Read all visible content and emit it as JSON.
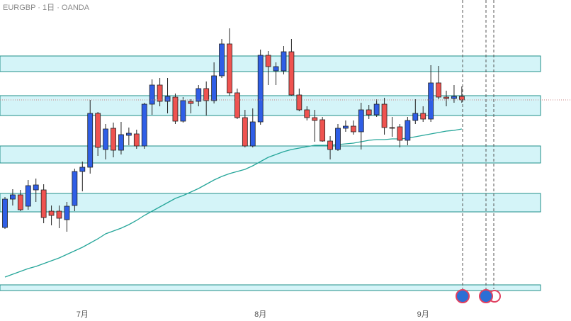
{
  "chart_data": {
    "type": "candlestick",
    "title": "EURGBP · 1日 · OANDA",
    "categories": [
      null,
      null,
      null,
      null,
      null,
      null,
      null,
      null,
      null,
      null,
      "7月",
      null,
      null,
      null,
      null,
      null,
      null,
      null,
      null,
      null,
      null,
      null,
      null,
      null,
      null,
      null,
      null,
      null,
      null,
      null,
      null,
      null,
      null,
      "8月",
      null,
      null,
      null,
      null,
      null,
      null,
      null,
      null,
      null,
      null,
      null,
      null,
      null,
      null,
      null,
      null,
      null,
      null,
      null,
      null,
      "9月",
      null,
      null,
      null,
      null,
      null
    ],
    "open": [
      109,
      149,
      155,
      139,
      162,
      162,
      132,
      132,
      120,
      140,
      188,
      194,
      270,
      219,
      249,
      218,
      239,
      241,
      224,
      283,
      310,
      287,
      293,
      259,
      287,
      287,
      305,
      288,
      323,
      368,
      299,
      264,
      224,
      258,
      352,
      330,
      330,
      357,
      296,
      275,
      264,
      261,
      231,
      219,
      249,
      252,
      244,
      275,
      268,
      283,
      250,
      251,
      232,
      260,
      270,
      262,
      313,
      293,
      291,
      294
    ],
    "high": [
      152,
      163,
      162,
      176,
      178,
      170,
      140,
      140,
      145,
      192,
      202,
      289,
      272,
      255,
      257,
      258,
      250,
      247,
      285,
      318,
      320,
      320,
      298,
      293,
      290,
      310,
      315,
      342,
      375,
      390,
      305,
      275,
      277,
      360,
      358,
      342,
      365,
      375,
      305,
      280,
      275,
      265,
      238,
      255,
      260,
      260,
      285,
      282,
      290,
      292,
      265,
      255,
      265,
      290,
      280,
      338,
      337,
      302,
      310,
      308
    ],
    "low": [
      107,
      140,
      132,
      134,
      145,
      115,
      112,
      108,
      103,
      132,
      160,
      185,
      210,
      205,
      208,
      212,
      225,
      220,
      220,
      268,
      280,
      270,
      255,
      257,
      270,
      280,
      267,
      284,
      320,
      295,
      262,
      222,
      222,
      254,
      310,
      310,
      325,
      295,
      273,
      260,
      230,
      230,
      205,
      217,
      244,
      240,
      219,
      262,
      265,
      240,
      237,
      222,
      225,
      255,
      258,
      258,
      290,
      280,
      285,
      285
    ],
    "close": [
      149,
      155,
      134,
      168,
      169,
      123,
      126,
      122,
      139,
      188,
      194,
      270,
      222,
      248,
      218,
      240,
      242,
      224,
      283,
      310,
      287,
      294,
      259,
      288,
      284,
      305,
      288,
      323,
      368,
      299,
      264,
      224,
      258,
      352,
      336,
      336,
      357,
      296,
      275,
      264,
      260,
      231,
      219,
      249,
      252,
      244,
      275,
      268,
      283,
      250,
      249,
      232,
      260,
      270,
      262,
      313,
      293,
      291,
      294,
      289
    ],
    "up_color": "#2f5ee6",
    "down_color": "#ef5350",
    "ma": {
      "color": "#26a69a",
      "values": [
        39,
        43,
        47,
        51,
        54,
        58,
        62,
        66,
        71,
        76,
        81,
        87,
        93,
        100,
        104,
        108,
        113,
        119,
        126,
        132,
        138,
        144,
        150,
        154,
        159,
        164,
        170,
        176,
        181,
        185,
        188,
        191,
        196,
        202,
        208,
        212,
        216,
        219,
        221,
        223,
        225,
        225,
        225,
        226,
        227,
        228,
        230,
        232,
        233,
        233,
        234,
        234,
        235,
        237,
        239,
        241,
        243,
        245,
        246,
        248
      ]
    },
    "zones": [
      [
        329,
        351
      ],
      [
        267,
        295
      ],
      [
        200,
        224
      ],
      [
        131,
        157
      ],
      [
        20,
        28
      ]
    ],
    "zone_color": "#d4f4f8",
    "last_price": 289,
    "ylim": [
      0,
      430
    ]
  }
}
